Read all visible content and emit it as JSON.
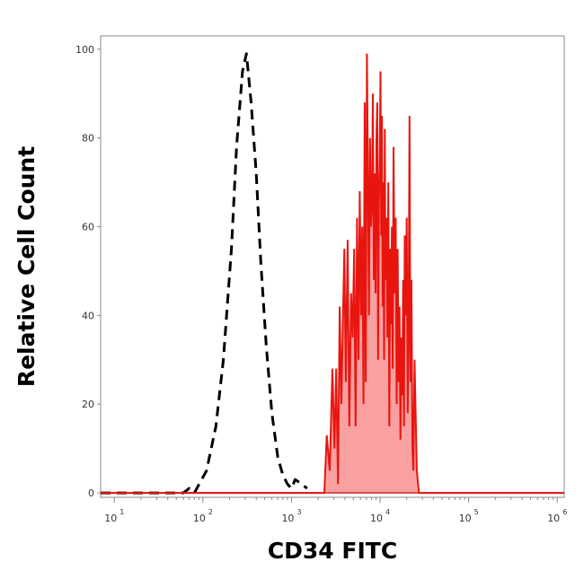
{
  "chart_data": {
    "type": "area",
    "xlabel": "CD34 FITC",
    "ylabel": "Relative Cell Count",
    "x_scale": "log",
    "xlim": [
      7,
      1200000
    ],
    "ylim": [
      -1,
      103
    ],
    "x_ticks": [
      {
        "base": "10",
        "exp": "1",
        "value": 10
      },
      {
        "base": "10",
        "exp": "2",
        "value": 100
      },
      {
        "base": "10",
        "exp": "3",
        "value": 1000
      },
      {
        "base": "10",
        "exp": "4",
        "value": 10000
      },
      {
        "base": "10",
        "exp": "5",
        "value": 100000
      },
      {
        "base": "10",
        "exp": "6",
        "value": 1000000
      }
    ],
    "y_ticks": [
      "0",
      "20",
      "40",
      "60",
      "80",
      "100"
    ],
    "grid": false,
    "legend": "none",
    "colors": {
      "control": "#000000",
      "stained_line": "#e8150f",
      "stained_fill": "#f9a0a0",
      "baseline": "#c62828",
      "axis": "#888888"
    },
    "series": [
      {
        "role": "isotype-control",
        "style": "dashed",
        "x": [
          7,
          20,
          40,
          60,
          70,
          80,
          110,
          140,
          170,
          210,
          240,
          280,
          310,
          350,
          400,
          450,
          520,
          600,
          700,
          800,
          900,
          1000,
          1100,
          1300,
          1500
        ],
        "y": [
          0,
          0,
          0,
          0,
          1,
          0,
          5,
          15,
          30,
          55,
          78,
          95,
          99,
          88,
          72,
          52,
          33,
          18,
          8,
          4,
          2,
          1,
          3,
          2,
          1
        ]
      },
      {
        "role": "CD34-stained",
        "style": "filled",
        "x": [
          7,
          2200,
          2350,
          2500,
          2700,
          2900,
          3050,
          3200,
          3350,
          3500,
          3650,
          3800,
          3950,
          4100,
          4300,
          4500,
          4700,
          4900,
          5100,
          5300,
          5500,
          5700,
          5900,
          6100,
          6300,
          6500,
          6700,
          6900,
          7100,
          7300,
          7500,
          7700,
          7900,
          8100,
          8300,
          8500,
          8700,
          8900,
          9100,
          9300,
          9500,
          9700,
          9900,
          10100,
          10300,
          10500,
          10700,
          10900,
          11100,
          11300,
          11500,
          11800,
          12100,
          12400,
          12700,
          13000,
          13300,
          13600,
          13900,
          14200,
          14600,
          15000,
          15400,
          15800,
          16200,
          16600,
          17000,
          17400,
          17800,
          18200,
          18600,
          19000,
          19500,
          20000,
          20500,
          21000,
          21500,
          22000,
          22600,
          23200,
          23800,
          24500,
          25200,
          26000,
          27500,
          1200000
        ],
        "y": [
          0,
          0,
          0,
          13,
          5,
          28,
          10,
          28,
          2,
          42,
          20,
          38,
          55,
          25,
          57,
          15,
          45,
          35,
          55,
          15,
          62,
          30,
          68,
          40,
          60,
          20,
          88,
          25,
          99,
          70,
          40,
          80,
          60,
          65,
          90,
          48,
          72,
          45,
          80,
          88,
          30,
          65,
          75,
          95,
          58,
          85,
          42,
          70,
          30,
          82,
          48,
          62,
          35,
          70,
          15,
          55,
          38,
          60,
          28,
          78,
          45,
          62,
          20,
          55,
          25,
          42,
          12,
          35,
          22,
          48,
          15,
          58,
          40,
          62,
          18,
          38,
          85,
          25,
          48,
          10,
          5,
          30,
          18,
          5,
          0,
          0
        ]
      }
    ]
  }
}
